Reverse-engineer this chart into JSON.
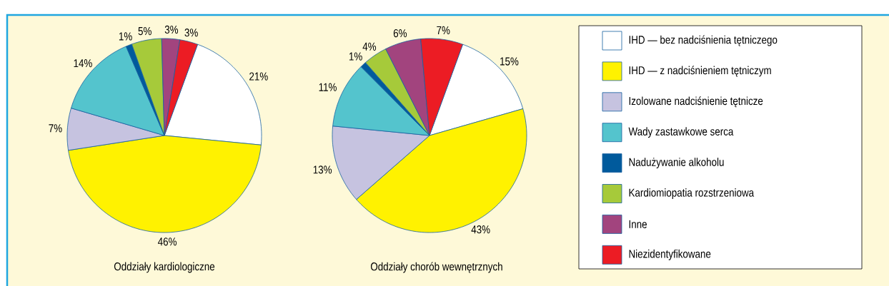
{
  "chart_data": [
    {
      "type": "pie",
      "title": "Oddziały kardiologiczne",
      "categories": [
        null,
        null,
        null,
        null,
        null,
        null,
        null,
        null
      ],
      "values": [
        21,
        46,
        7,
        14,
        1,
        5,
        3,
        3
      ],
      "value_labels": [
        "21%",
        "46%",
        "7%",
        "14%",
        "1%",
        "5%",
        "3%",
        "3%"
      ],
      "colors": [
        "#ffffff",
        "#fff200",
        "#c6c3e0",
        "#54c4cd",
        "#005a9c",
        "#a6ca3a",
        "#a2447e",
        "#ec1c24"
      ],
      "legend": false
    },
    {
      "type": "pie",
      "title": "Oddziały chorób wewnętrznych",
      "categories": [
        "IHD — bez nadciśnienia tętniczego",
        "IHD — z nadciśnieniem tętniczym",
        "Izolowane nadciśnienie tętnicze",
        "Wady zastawkowe serca",
        "Nadużywanie alkoholu",
        "Kardiomiopatia rozstrzeniowa",
        "Inne",
        "Niezidentyfikowane"
      ],
      "values": [
        15,
        43,
        13,
        11,
        1,
        4,
        6,
        7
      ],
      "value_labels": [
        "15%",
        "43%",
        "13%",
        "11%",
        "1%",
        "4%",
        "6%",
        "7%"
      ],
      "colors": [
        "#ffffff",
        "#fff200",
        "#c6c3e0",
        "#54c4cd",
        "#005a9c",
        "#a6ca3a",
        "#a2447e",
        "#ec1c24"
      ],
      "legend": "right"
    }
  ]
}
